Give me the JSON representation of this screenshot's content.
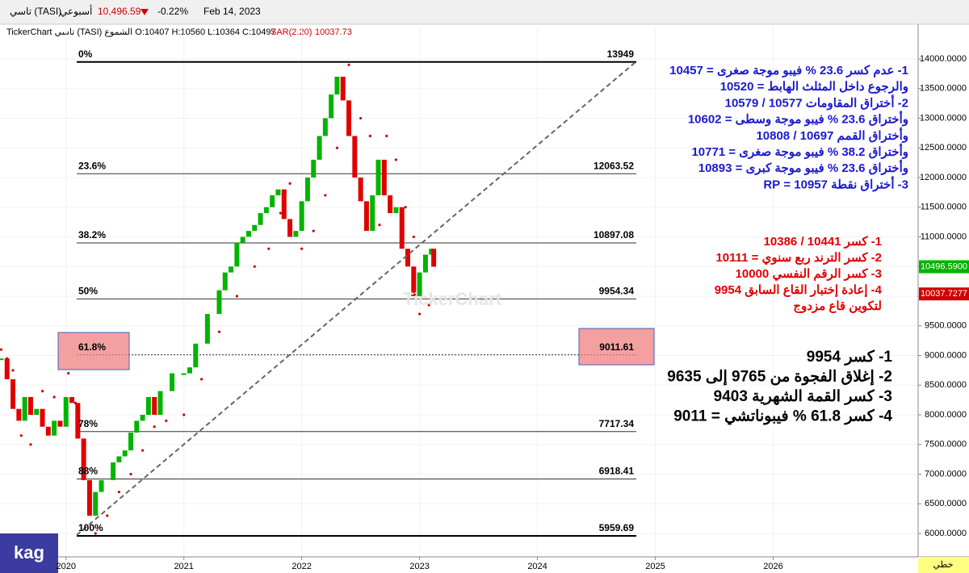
{
  "chart_data": {
    "type": "candlestick",
    "header": {
      "symbol": "تاسي (TASI)",
      "period": "أسبوعي",
      "last": "10,496.59",
      "change": "-0.22%",
      "date": "Feb 14, 2023",
      "ohlc": "TickerChart تاسي (TASI) الشموع O:10407 H:10560 L:10364 C:10497",
      "sar_label": "SAR(2.20)",
      "sar_value": "10037.73"
    },
    "watermark": "TickerChart",
    "corner_label": "kag",
    "axis_mode": "خطي",
    "xlim": [
      2019.44,
      2027.23
    ],
    "xticks": [
      2020,
      2021,
      2022,
      2023,
      2024,
      2025,
      2026
    ],
    "ylim": [
      5606,
      14530
    ],
    "yticks": [
      {
        "value": 6000,
        "label": "6000.0000"
      },
      {
        "value": 6500,
        "label": "6500.0000"
      },
      {
        "value": 7000,
        "label": "7000.0000"
      },
      {
        "value": 7500,
        "label": "7500.0000"
      },
      {
        "value": 8000,
        "label": "8000.0000"
      },
      {
        "value": 8500,
        "label": "8500.0000"
      },
      {
        "value": 9000,
        "label": "9000.0000"
      },
      {
        "value": 9500,
        "label": "9500.0000"
      },
      {
        "value": 10000,
        "label": "10000.0000"
      },
      {
        "value": 10500,
        "label": "10500.0000"
      },
      {
        "value": 11000,
        "label": "11000.0000"
      },
      {
        "value": 11500,
        "label": "11500.0000"
      },
      {
        "value": 12000,
        "label": "12000.0000"
      },
      {
        "value": 12500,
        "label": "12500.0000"
      },
      {
        "value": 13000,
        "label": "13000.0000"
      },
      {
        "value": 13500,
        "label": "13500.0000"
      },
      {
        "value": 14000,
        "label": "14000.0000"
      }
    ],
    "grid": true,
    "up_color": "#00b400",
    "down_color": "#e00000",
    "x": [
      2019.45,
      2019.5,
      2019.55,
      2019.6,
      2019.65,
      2019.7,
      2019.75,
      2019.8,
      2019.85,
      2019.9,
      2019.95,
      2020.0,
      2020.05,
      2020.1,
      2020.15,
      2020.2,
      2020.25,
      2020.3,
      2020.4,
      2020.45,
      2020.5,
      2020.55,
      2020.6,
      2020.65,
      2020.7,
      2020.75,
      2020.8,
      2020.9,
      2021.0,
      2021.05,
      2021.1,
      2021.2,
      2021.3,
      2021.35,
      2021.4,
      2021.45,
      2021.5,
      2021.55,
      2021.6,
      2021.65,
      2021.7,
      2021.75,
      2021.8,
      2021.85,
      2021.9,
      2021.95,
      2022.0,
      2022.05,
      2022.1,
      2022.15,
      2022.2,
      2022.25,
      2022.3,
      2022.35,
      2022.4,
      2022.45,
      2022.5,
      2022.55,
      2022.6,
      2022.65,
      2022.7,
      2022.75,
      2022.8,
      2022.85,
      2022.9,
      2022.95,
      2023.0,
      2023.05,
      2023.1,
      2023.12
    ],
    "values": [
      8950,
      8600,
      8100,
      7900,
      8300,
      8000,
      8100,
      7800,
      7650,
      7900,
      7800,
      8300,
      8200,
      7600,
      6900,
      6300,
      6700,
      6900,
      7200,
      7300,
      7400,
      7700,
      7900,
      8000,
      8300,
      8000,
      8400,
      8700,
      8700,
      8800,
      9200,
      9700,
      10100,
      10400,
      10500,
      10900,
      11000,
      11100,
      11200,
      11400,
      11500,
      11700,
      11800,
      11300,
      11000,
      11100,
      11600,
      12000,
      12300,
      12700,
      13000,
      13400,
      13700,
      13300,
      12700,
      12000,
      11600,
      11100,
      11700,
      12300,
      11700,
      11400,
      11500,
      10800,
      10500,
      10000,
      10400,
      10700,
      10800,
      10497
    ],
    "sar": {
      "color": "#d00000",
      "x": [
        2019.45,
        2019.5,
        2019.55,
        2019.62,
        2019.7,
        2019.8,
        2019.9,
        2020.02,
        2020.08,
        2020.15,
        2020.25,
        2020.35,
        2020.45,
        2020.55,
        2020.65,
        2020.75,
        2020.85,
        2021.0,
        2021.15,
        2021.3,
        2021.45,
        2021.6,
        2021.72,
        2021.82,
        2021.9,
        2022.0,
        2022.1,
        2022.2,
        2022.3,
        2022.4,
        2022.5,
        2022.58,
        2022.66,
        2022.72,
        2022.8,
        2022.88,
        2022.95,
        2023.0,
        2023.08
      ],
      "values": [
        9100,
        8950,
        8750,
        7650,
        7500,
        8400,
        8300,
        8700,
        8200,
        7500,
        6000,
        6300,
        6700,
        7000,
        7400,
        7800,
        7900,
        8000,
        8600,
        9400,
        10000,
        10500,
        10800,
        11400,
        11900,
        10800,
        11100,
        11700,
        12500,
        13900,
        13000,
        12700,
        11200,
        12700,
        12300,
        11500,
        11000,
        9700,
        9850
      ]
    },
    "fib_levels": [
      {
        "label": "0%",
        "value": 13949
      },
      {
        "label": "23.6%",
        "value": 12063.52
      },
      {
        "label": "38.2%",
        "value": 10897.08
      },
      {
        "label": "50%",
        "value": 9954.34
      },
      {
        "label": "61.8%",
        "value": 9011.61
      },
      {
        "label": "78%",
        "value": 7717.34
      },
      {
        "label": "88%",
        "value": 6918.41
      },
      {
        "label": "100%",
        "value": 5959.69
      }
    ],
    "badges": [
      {
        "value": 10496.59,
        "label": "10496.5900",
        "color": "#00b400"
      },
      {
        "value": 10037.7277,
        "color": "#d00000"
      }
    ],
    "notes_blue": [
      "1- عدم كسر 23.6 % فيبو موجة صغرى = 10457",
      "والرجوع داخل المثلث الهابط = 10520",
      "2- أختراق المقاومات 10577 / 10579",
      "وأختراق  23.6 % فيبو موجة وسطى = 10602",
      "وأختراق القمم 10697 / 10808",
      "وأختراق 38.2 % فيبو موجة صغرى  = 10771",
      "وأختراق 23.6 % فيبو موجة كبرى = 10893",
      "3- أختراق نقطة 10957 = RP"
    ],
    "notes_red": [
      "1- كسر 10441 / 10386",
      "2- كسر الترند ربع سنوي = 10111",
      "3- كسر الرقم النفسي 10000",
      "4- إعادة إختبار القاع السابق 9954",
      "لتكوين قاع مزدوج"
    ],
    "notes_black": [
      "1- كسر 9954",
      "2- إغلاق الفجوة من 9765 إلى 9635",
      "3- كسر القمة الشهرية 9403",
      "4- كسر 61.8 % فيبوناتشي = 9011"
    ]
  }
}
